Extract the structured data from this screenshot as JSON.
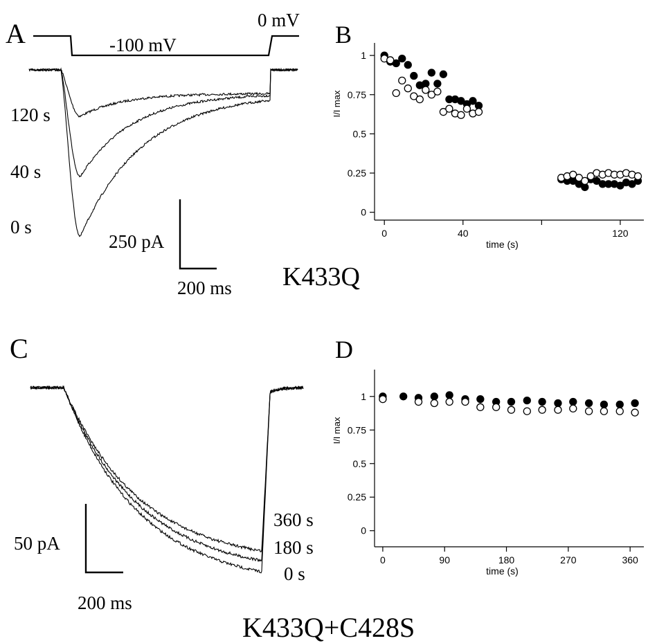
{
  "panels": {
    "A": {
      "letter": "A",
      "protocol": {
        "holding_label": "0 mV",
        "step_label": "-100 mV"
      },
      "trace_labels": [
        "120 s",
        "40 s",
        "0 s"
      ],
      "scale_current": "250 pA",
      "scale_time": "200 ms"
    },
    "B": {
      "letter": "B"
    },
    "condition_top": "K433Q",
    "C": {
      "letter": "C",
      "trace_labels": [
        "360 s",
        "180 s",
        "0 s"
      ],
      "scale_current": "50 pA",
      "scale_time": "200 ms"
    },
    "D": {
      "letter": "D"
    },
    "condition_bottom": "K433Q+C428S"
  },
  "chart_data": [
    {
      "panel": "B",
      "type": "scatter",
      "xlabel": "time  (s)",
      "ylabel": "I/I max",
      "xlim": [
        -5,
        132
      ],
      "ylim": [
        -0.05,
        1.08
      ],
      "xticks": [
        0,
        40,
        80,
        120
      ],
      "xtick_labels": [
        "0",
        "40",
        "",
        "120"
      ],
      "yticks": [
        0,
        0.25,
        0.5,
        0.75,
        1
      ],
      "ytick_labels": [
        "0",
        "0.25",
        "0.5",
        "0.75",
        "1"
      ],
      "series": [
        {
          "marker": "filled-circle",
          "x": [
            0,
            3,
            6,
            9,
            12,
            15,
            18,
            21,
            24,
            27,
            30,
            33,
            36,
            39,
            42,
            45,
            48,
            90,
            93,
            96,
            99,
            102,
            105,
            108,
            111,
            114,
            117,
            120,
            123,
            126,
            129
          ],
          "y": [
            1.0,
            0.96,
            0.95,
            0.98,
            0.94,
            0.87,
            0.81,
            0.82,
            0.89,
            0.82,
            0.88,
            0.72,
            0.72,
            0.71,
            0.69,
            0.71,
            0.68,
            0.21,
            0.2,
            0.2,
            0.18,
            0.16,
            0.21,
            0.2,
            0.18,
            0.18,
            0.18,
            0.17,
            0.19,
            0.18,
            0.2
          ]
        },
        {
          "marker": "open-circle",
          "x": [
            0,
            3,
            6,
            9,
            12,
            15,
            18,
            21,
            24,
            27,
            30,
            33,
            36,
            39,
            42,
            45,
            48,
            90,
            93,
            96,
            99,
            102,
            105,
            108,
            111,
            114,
            117,
            120,
            123,
            126,
            129
          ],
          "y": [
            0.98,
            0.97,
            0.76,
            0.84,
            0.79,
            0.74,
            0.72,
            0.78,
            0.75,
            0.77,
            0.64,
            0.66,
            0.63,
            0.62,
            0.66,
            0.63,
            0.64,
            0.22,
            0.23,
            0.24,
            0.22,
            0.2,
            0.23,
            0.25,
            0.24,
            0.25,
            0.24,
            0.24,
            0.25,
            0.24,
            0.23
          ]
        }
      ]
    },
    {
      "panel": "D",
      "type": "scatter",
      "xlabel": "time  (s)",
      "ylabel": "I/I max",
      "xlim": [
        -12,
        380
      ],
      "ylim": [
        -0.12,
        1.2
      ],
      "xticks": [
        0,
        90,
        180,
        270,
        360
      ],
      "xtick_labels": [
        "0",
        "90",
        "180",
        "270",
        "360"
      ],
      "yticks": [
        0,
        0.25,
        0.5,
        0.75,
        1
      ],
      "ytick_labels": [
        "0",
        "0.25",
        "0.5",
        "0.75",
        "1"
      ],
      "series": [
        {
          "marker": "filled-circle",
          "x": [
            0,
            30,
            60,
            90,
            120,
            150,
            180,
            210,
            240,
            270,
            300,
            330,
            360,
            380
          ],
          "y": [
            1.0,
            1.0,
            1.0,
            1.0,
            0.99,
            0.98,
            0.97,
            0.97,
            0.96,
            0.96,
            0.95,
            0.95,
            0.95,
            0.95
          ],
          "x_full": [
            0,
            30,
            52,
            75,
            97,
            120,
            142,
            165,
            187,
            210,
            232,
            255,
            277,
            300,
            322,
            345,
            367
          ],
          "y_full": [
            1.0,
            1.0,
            0.99,
            1.0,
            1.01,
            0.98,
            0.98,
            0.96,
            0.96,
            0.97,
            0.96,
            0.95,
            0.96,
            0.95,
            0.94,
            0.94,
            0.95
          ]
        },
        {
          "marker": "open-circle",
          "x": [
            0,
            52,
            75,
            97,
            120,
            142,
            165,
            187,
            210,
            232,
            255,
            277,
            300,
            322,
            345,
            367
          ],
          "y": [
            0.98,
            0.96,
            0.95,
            0.96,
            0.96,
            0.92,
            0.92,
            0.9,
            0.89,
            0.9,
            0.9,
            0.91,
            0.89,
            0.89,
            0.89,
            0.88
          ]
        }
      ]
    },
    {
      "panel": "A",
      "type": "line",
      "description_series": [
        {
          "name": "0 s",
          "peak_pA": -640
        },
        {
          "name": "40 s",
          "peak_pA": -410
        },
        {
          "name": "120 s",
          "peak_pA": -178
        }
      ]
    },
    {
      "panel": "C",
      "type": "line",
      "description_series": [
        {
          "name": "0 s",
          "end_pA": -265
        },
        {
          "name": "180 s",
          "end_pA": -250
        },
        {
          "name": "360 s",
          "end_pA": -235
        }
      ]
    }
  ]
}
